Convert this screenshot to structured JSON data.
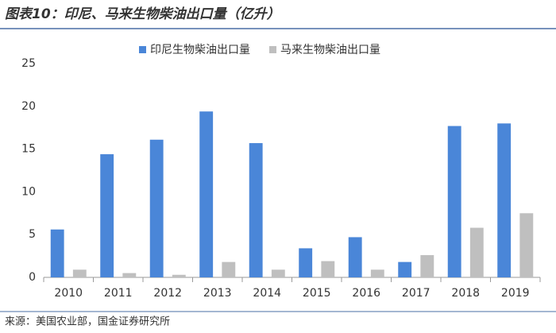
{
  "chart_data": {
    "type": "bar",
    "title": "图表10：印尼、马来生物柴油出口量（亿升）",
    "source": "来源：美国农业部，国金证券研究所",
    "categories": [
      "2010",
      "2011",
      "2012",
      "2013",
      "2014",
      "2015",
      "2016",
      "2017",
      "2018",
      "2019"
    ],
    "series": [
      {
        "name": "印尼生物柴油出口量",
        "color": "#4a86d8",
        "values": [
          5.6,
          14.4,
          16.1,
          19.4,
          15.7,
          3.4,
          4.7,
          1.8,
          17.7,
          18.0
        ]
      },
      {
        "name": "马来生物柴油出口量",
        "color": "#bfbfbf",
        "values": [
          0.9,
          0.5,
          0.3,
          1.8,
          0.9,
          1.9,
          0.9,
          2.6,
          5.8,
          7.5
        ]
      }
    ],
    "ylim": [
      0,
      25
    ],
    "yticks": [
      0,
      5,
      10,
      15,
      20,
      25
    ],
    "grid": false,
    "legend": "top"
  }
}
